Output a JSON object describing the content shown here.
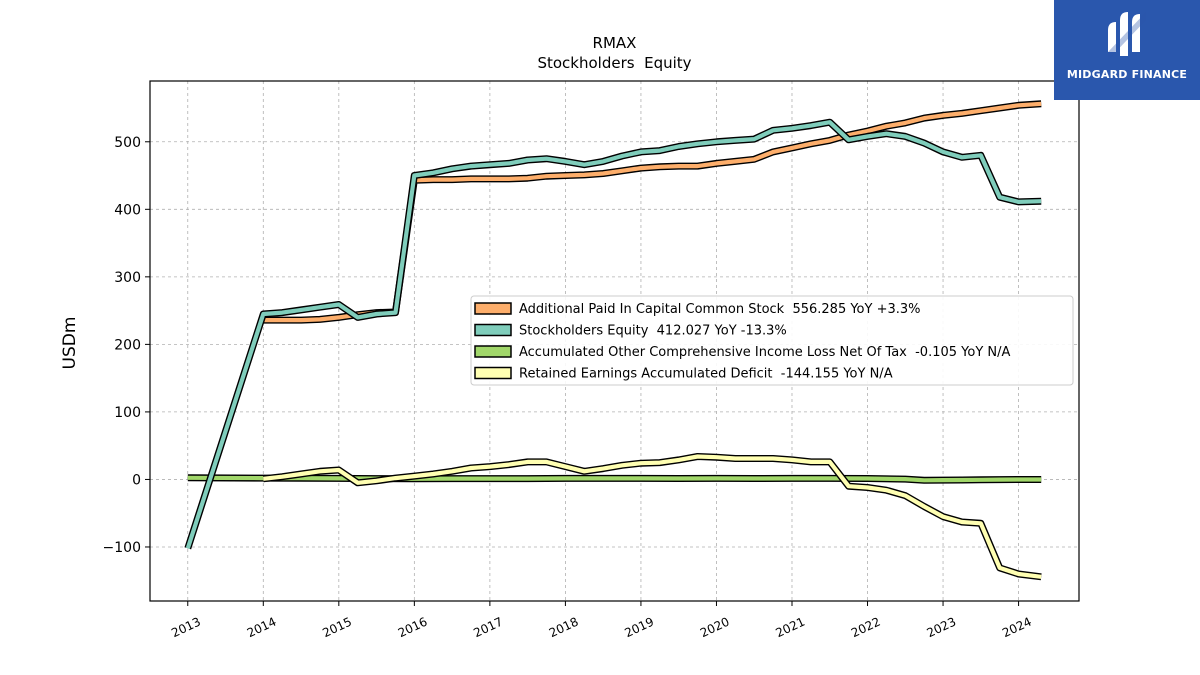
{
  "logo": {
    "text": "MIDGARD FINANCE",
    "background": "#2a57ad"
  },
  "chart_data": {
    "type": "line",
    "title": "RMAX",
    "subtitle": "Stockholders  Equity",
    "ylabel": "USDm",
    "xlabel": "",
    "xlim": [
      2012.5,
      2024.8
    ],
    "ylim": [
      -180,
      590
    ],
    "yticks": [
      -100,
      0,
      100,
      200,
      300,
      400,
      500
    ],
    "ytick_labels": [
      "−100",
      "0",
      "100",
      "200",
      "300",
      "400",
      "500"
    ],
    "xticks": [
      2013,
      2014,
      2015,
      2016,
      2017,
      2018,
      2019,
      2020,
      2021,
      2022,
      2023,
      2024
    ],
    "xtick_labels": [
      "2013",
      "2014",
      "2015",
      "2016",
      "2017",
      "2018",
      "2019",
      "2020",
      "2021",
      "2022",
      "2023",
      "2024"
    ],
    "grid": true,
    "legend_position": "center-right",
    "series": [
      {
        "name": "Additional Paid In Capital Common Stock  556.285 YoY +3.3%",
        "color": "#fdae6b",
        "points": [
          [
            2014.0,
            236
          ],
          [
            2014.25,
            236
          ],
          [
            2014.5,
            236
          ],
          [
            2014.75,
            237
          ],
          [
            2015.0,
            240
          ],
          [
            2015.25,
            244
          ],
          [
            2015.5,
            247
          ],
          [
            2015.75,
            248
          ],
          [
            2016.0,
            443
          ],
          [
            2016.25,
            444
          ],
          [
            2016.5,
            444
          ],
          [
            2016.75,
            445
          ],
          [
            2017.0,
            445
          ],
          [
            2017.25,
            445
          ],
          [
            2017.5,
            446
          ],
          [
            2017.75,
            449
          ],
          [
            2018.0,
            450
          ],
          [
            2018.25,
            451
          ],
          [
            2018.5,
            453
          ],
          [
            2018.75,
            457
          ],
          [
            2019.0,
            461
          ],
          [
            2019.25,
            463
          ],
          [
            2019.5,
            464
          ],
          [
            2019.75,
            464
          ],
          [
            2020.0,
            468
          ],
          [
            2020.25,
            471
          ],
          [
            2020.5,
            474
          ],
          [
            2020.75,
            485
          ],
          [
            2021.0,
            491
          ],
          [
            2021.25,
            497
          ],
          [
            2021.5,
            502
          ],
          [
            2021.75,
            510
          ],
          [
            2022.0,
            516
          ],
          [
            2022.25,
            523
          ],
          [
            2022.5,
            528
          ],
          [
            2022.75,
            535
          ],
          [
            2023.0,
            539
          ],
          [
            2023.25,
            542
          ],
          [
            2023.5,
            546
          ],
          [
            2023.75,
            550
          ],
          [
            2024.0,
            554
          ],
          [
            2024.3,
            556.285
          ]
        ]
      },
      {
        "name": "Stockholders Equity  412.027 YoY -13.3%",
        "color": "#7fcdbb",
        "points": [
          [
            2013.0,
            -102
          ],
          [
            2014.0,
            245
          ],
          [
            2014.25,
            247
          ],
          [
            2014.5,
            251
          ],
          [
            2014.75,
            255
          ],
          [
            2015.0,
            259
          ],
          [
            2015.25,
            240
          ],
          [
            2015.5,
            245
          ],
          [
            2015.75,
            247
          ],
          [
            2016.0,
            450
          ],
          [
            2016.25,
            454
          ],
          [
            2016.5,
            460
          ],
          [
            2016.75,
            464
          ],
          [
            2017.0,
            466
          ],
          [
            2017.25,
            468
          ],
          [
            2017.5,
            473
          ],
          [
            2017.75,
            475
          ],
          [
            2018.0,
            471
          ],
          [
            2018.25,
            466
          ],
          [
            2018.5,
            471
          ],
          [
            2018.75,
            479
          ],
          [
            2019.0,
            485
          ],
          [
            2019.25,
            487
          ],
          [
            2019.5,
            493
          ],
          [
            2019.75,
            497
          ],
          [
            2020.0,
            500
          ],
          [
            2020.25,
            502
          ],
          [
            2020.5,
            504
          ],
          [
            2020.75,
            517
          ],
          [
            2021.0,
            520
          ],
          [
            2021.25,
            524
          ],
          [
            2021.5,
            529
          ],
          [
            2021.75,
            503
          ],
          [
            2022.0,
            508
          ],
          [
            2022.25,
            512
          ],
          [
            2022.5,
            508
          ],
          [
            2022.75,
            498
          ],
          [
            2023.0,
            485
          ],
          [
            2023.25,
            477
          ],
          [
            2023.5,
            480
          ],
          [
            2023.75,
            418
          ],
          [
            2024.0,
            411
          ],
          [
            2024.3,
            412.027
          ]
        ]
      },
      {
        "name": "Accumulated Other Comprehensive Income Loss Net Of Tax  -0.105 YoY N/A",
        "color": "#a1d76a",
        "points": [
          [
            2013.0,
            2.5
          ],
          [
            2014.0,
            2.0
          ],
          [
            2014.5,
            1.8
          ],
          [
            2015.0,
            1.5
          ],
          [
            2015.5,
            1.2
          ],
          [
            2016.0,
            1.0
          ],
          [
            2016.5,
            1.2
          ],
          [
            2017.0,
            1.2
          ],
          [
            2017.5,
            1.3
          ],
          [
            2018.0,
            1.5
          ],
          [
            2018.5,
            1.6
          ],
          [
            2019.0,
            1.5
          ],
          [
            2019.5,
            1.4
          ],
          [
            2020.0,
            1.5
          ],
          [
            2020.5,
            1.4
          ],
          [
            2021.0,
            1.5
          ],
          [
            2021.5,
            1.6
          ],
          [
            2022.0,
            1.4
          ],
          [
            2022.5,
            0.5
          ],
          [
            2022.75,
            -1.2
          ],
          [
            2023.0,
            -1.0
          ],
          [
            2023.25,
            -0.8
          ],
          [
            2023.5,
            -0.5
          ],
          [
            2023.75,
            -0.3
          ],
          [
            2024.0,
            -0.1
          ],
          [
            2024.3,
            -0.105
          ]
        ]
      },
      {
        "name": "Retained Earnings Accumulated Deficit  -144.155 YoY N/A",
        "color": "#ffffb2",
        "points": [
          [
            2014.0,
            1
          ],
          [
            2014.25,
            4
          ],
          [
            2014.5,
            8
          ],
          [
            2014.75,
            12
          ],
          [
            2015.0,
            14
          ],
          [
            2015.25,
            -5
          ],
          [
            2015.5,
            -2
          ],
          [
            2015.75,
            2
          ],
          [
            2016.0,
            5
          ],
          [
            2016.25,
            8
          ],
          [
            2016.5,
            12
          ],
          [
            2016.75,
            17
          ],
          [
            2017.0,
            19
          ],
          [
            2017.25,
            22
          ],
          [
            2017.5,
            26
          ],
          [
            2017.75,
            26
          ],
          [
            2018.0,
            19
          ],
          [
            2018.25,
            12
          ],
          [
            2018.5,
            16
          ],
          [
            2018.75,
            21
          ],
          [
            2019.0,
            24
          ],
          [
            2019.25,
            25
          ],
          [
            2019.5,
            29
          ],
          [
            2019.75,
            34
          ],
          [
            2020.0,
            33
          ],
          [
            2020.25,
            31
          ],
          [
            2020.5,
            31
          ],
          [
            2020.75,
            31
          ],
          [
            2021.0,
            29
          ],
          [
            2021.25,
            26
          ],
          [
            2021.5,
            26
          ],
          [
            2021.75,
            -10
          ],
          [
            2022.0,
            -12
          ],
          [
            2022.25,
            -16
          ],
          [
            2022.5,
            -24
          ],
          [
            2022.75,
            -40
          ],
          [
            2023.0,
            -55
          ],
          [
            2023.25,
            -63
          ],
          [
            2023.5,
            -65
          ],
          [
            2023.75,
            -131
          ],
          [
            2024.0,
            -140
          ],
          [
            2024.3,
            -144.155
          ]
        ]
      }
    ]
  }
}
